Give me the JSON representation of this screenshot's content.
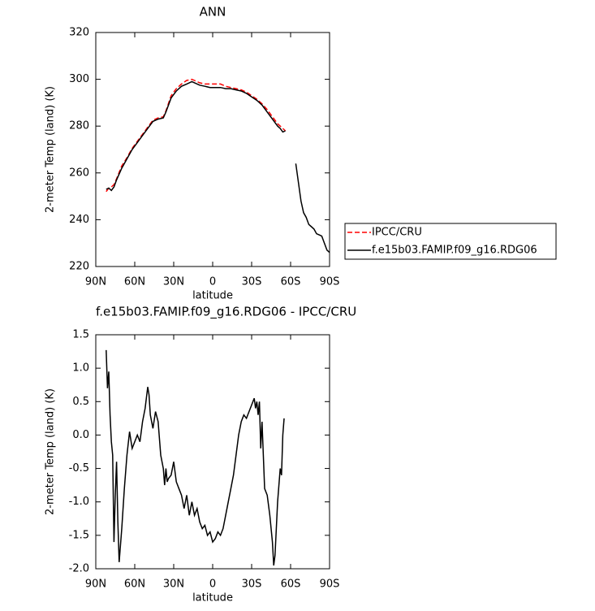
{
  "chart_data": [
    {
      "type": "line",
      "title": "ANN",
      "xlabel": "latitude",
      "ylabel": "2-meter Temp (land) (K)",
      "x": [
        82,
        80,
        78,
        76,
        74,
        70,
        66,
        62,
        58,
        54,
        50,
        46,
        42,
        38,
        36,
        32,
        28,
        24,
        20,
        16,
        14,
        10,
        6,
        2,
        -2,
        -6,
        -10,
        -14,
        -18,
        -22,
        -26,
        -30,
        -34,
        -38,
        -42,
        -46,
        -50,
        -52,
        -54,
        -56,
        -60,
        -64,
        -66,
        -68,
        -70,
        -72,
        -74,
        -76,
        -78,
        -80,
        -82,
        -84,
        -86,
        -88,
        -90
      ],
      "series": [
        {
          "name": "IPCC/CRU",
          "color": "#ff0000",
          "line_style": "dashed",
          "values": [
            252,
            253.5,
            254,
            255,
            257.5,
            263,
            266.5,
            270.5,
            273.5,
            276.5,
            279.5,
            282.5,
            283.5,
            284,
            286.5,
            293,
            296,
            298,
            299.5,
            300,
            299.5,
            298.5,
            298,
            298,
            298,
            298,
            297,
            296.5,
            296,
            295.5,
            294.5,
            293,
            291.5,
            289.5,
            287,
            284,
            281,
            280,
            279,
            278,
            null,
            null,
            null,
            null,
            null,
            null,
            null,
            null,
            null,
            null,
            null,
            null,
            null,
            null,
            null
          ]
        },
        {
          "name": "f.e15b03.FAMIP.f09_g16.RDG06",
          "color": "#000000",
          "line_style": "solid",
          "values": [
            253,
            253.5,
            252.5,
            254,
            257,
            262,
            266,
            270,
            273,
            276,
            279,
            282,
            283,
            283.5,
            286,
            292,
            295,
            297,
            298,
            299,
            298.5,
            297.5,
            297,
            296.5,
            296.5,
            296.5,
            296,
            296,
            295.5,
            295,
            294,
            292.5,
            291,
            289,
            286,
            283,
            280,
            279,
            277.5,
            278,
            null,
            264,
            256,
            248,
            243,
            241,
            238,
            237,
            236,
            234,
            233.5,
            233,
            230,
            227,
            226
          ]
        }
      ],
      "xlim": [
        90,
        -90
      ],
      "xticks": [
        {
          "value": 90,
          "label": "90N"
        },
        {
          "value": 60,
          "label": "60N"
        },
        {
          "value": 30,
          "label": "30N"
        },
        0,
        {
          "value": -30,
          "label": "30S"
        },
        {
          "value": -60,
          "label": "60S"
        },
        {
          "value": -90,
          "label": "90S"
        }
      ],
      "ylim": [
        220,
        320
      ],
      "yticks": [
        220,
        240,
        260,
        280,
        300,
        320
      ],
      "legend": "right"
    },
    {
      "type": "line",
      "title": "f.e15b03.FAMIP.f09_g16.RDG06 - IPCC/CRU",
      "xlabel": "latitude",
      "ylabel": "2-meter Temp (land) (K)",
      "x": [
        82,
        81,
        80,
        79,
        78,
        77,
        76,
        75,
        74,
        73,
        72,
        70,
        68,
        66,
        64,
        62,
        60,
        58,
        56,
        54,
        52,
        50,
        49,
        48,
        46,
        44,
        42,
        40,
        38,
        37,
        36,
        35,
        34,
        32,
        30,
        28,
        26,
        24,
        22,
        20,
        18,
        16,
        14,
        12,
        10,
        8,
        6,
        4,
        2,
        0,
        -2,
        -4,
        -6,
        -8,
        -10,
        -12,
        -14,
        -16,
        -18,
        -20,
        -22,
        -24,
        -26,
        -28,
        -30,
        -32,
        -33,
        -34,
        -35,
        -36,
        -37,
        -38,
        -39,
        -40,
        -42,
        -44,
        -46,
        -47,
        -48,
        -50,
        -52,
        -53,
        -54,
        -55
      ],
      "series": [
        {
          "color": "#000000",
          "line_style": "solid",
          "values": [
            1.27,
            0.7,
            0.95,
            0.3,
            -0.1,
            -0.3,
            -1.6,
            -0.9,
            -0.4,
            -1.3,
            -1.9,
            -1.4,
            -0.8,
            -0.3,
            0.05,
            -0.2,
            -0.1,
            0.0,
            -0.1,
            0.2,
            0.4,
            0.72,
            0.6,
            0.3,
            0.1,
            0.35,
            0.2,
            -0.3,
            -0.5,
            -0.75,
            -0.5,
            -0.7,
            -0.65,
            -0.6,
            -0.4,
            -0.7,
            -0.8,
            -0.9,
            -1.1,
            -0.9,
            -1.2,
            -1.0,
            -1.2,
            -1.1,
            -1.3,
            -1.4,
            -1.35,
            -1.5,
            -1.45,
            -1.6,
            -1.55,
            -1.45,
            -1.5,
            -1.4,
            -1.2,
            -1.0,
            -0.8,
            -0.6,
            -0.3,
            0.0,
            0.2,
            0.3,
            0.25,
            0.35,
            0.45,
            0.55,
            0.4,
            0.5,
            0.3,
            0.5,
            -0.2,
            0.2,
            -0.3,
            -0.8,
            -0.9,
            -1.2,
            -1.6,
            -1.95,
            -1.8,
            -1.0,
            -0.5,
            -0.6,
            0.0,
            0.25
          ]
        }
      ],
      "xlim": [
        90,
        -90
      ],
      "xticks": [
        {
          "value": 90,
          "label": "90N"
        },
        {
          "value": 60,
          "label": "60N"
        },
        {
          "value": 30,
          "label": "30N"
        },
        0,
        {
          "value": -30,
          "label": "30S"
        },
        {
          "value": -60,
          "label": "60S"
        },
        {
          "value": -90,
          "label": "90S"
        }
      ],
      "ylim": [
        -2,
        1.5
      ],
      "yticks": [
        {
          "value": -2,
          "label": "-2.0"
        },
        -1.5,
        {
          "value": -1,
          "label": "-1.0"
        },
        -0.5,
        {
          "value": 0,
          "label": "0.0"
        },
        0.5,
        {
          "value": 1,
          "label": "1.0"
        },
        1.5
      ]
    }
  ]
}
